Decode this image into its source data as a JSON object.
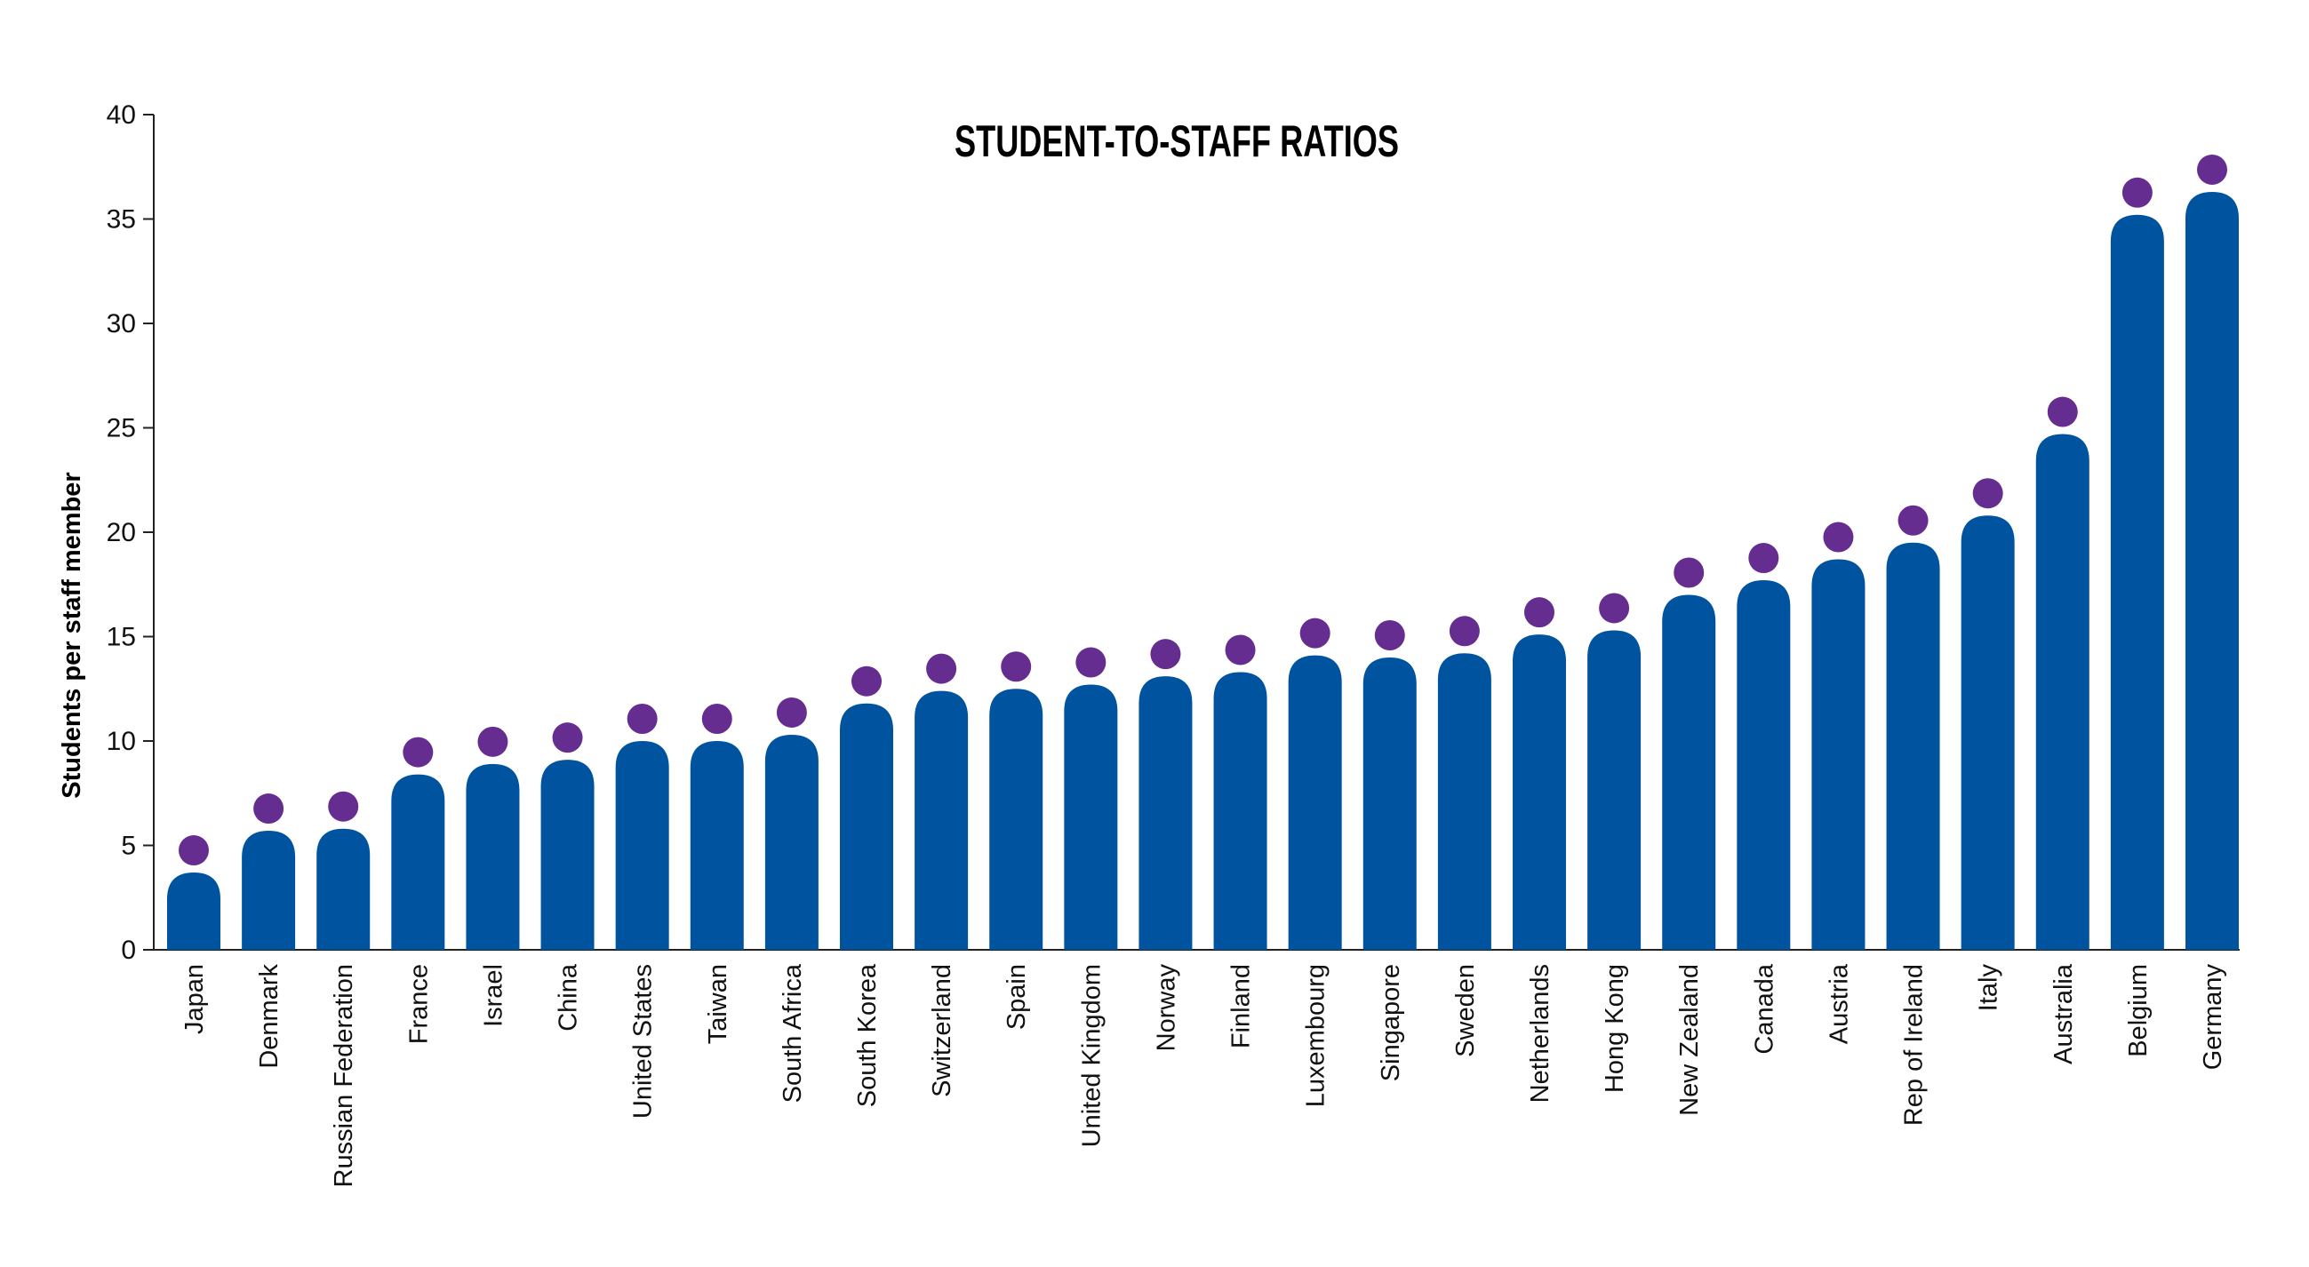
{
  "chart_data": {
    "type": "bar",
    "title": "STUDENT-TO-STAFF RATIOS",
    "xlabel": "",
    "ylabel": "Students per staff member",
    "ylim": [
      0,
      40
    ],
    "yticks": [
      0,
      5,
      10,
      15,
      20,
      25,
      30,
      35,
      40
    ],
    "grid": false,
    "categories": [
      "Japan",
      "Denmark",
      "Russian Federation",
      "France",
      "Israel",
      "China",
      "United States",
      "Taiwan",
      "South Africa",
      "South Korea",
      "Switzerland",
      "Spain",
      "United Kingdom",
      "Norway",
      "Finland",
      "Luxembourg",
      "Singapore",
      "Sweden",
      "Netherlands",
      "Hong Kong",
      "New Zealand",
      "Canada",
      "Austria",
      "Rep of Ireland",
      "Italy",
      "Australia",
      "Belgium",
      "Germany"
    ],
    "values": [
      3.7,
      5.7,
      5.8,
      8.4,
      8.9,
      9.1,
      10.0,
      10.0,
      10.3,
      11.8,
      12.4,
      12.5,
      12.7,
      13.1,
      13.3,
      14.1,
      14.0,
      14.2,
      15.1,
      15.3,
      17.0,
      17.7,
      18.7,
      19.5,
      20.8,
      24.7,
      35.2,
      36.3
    ],
    "colors": {
      "bar": "#00539f",
      "dot": "#662d91"
    }
  }
}
